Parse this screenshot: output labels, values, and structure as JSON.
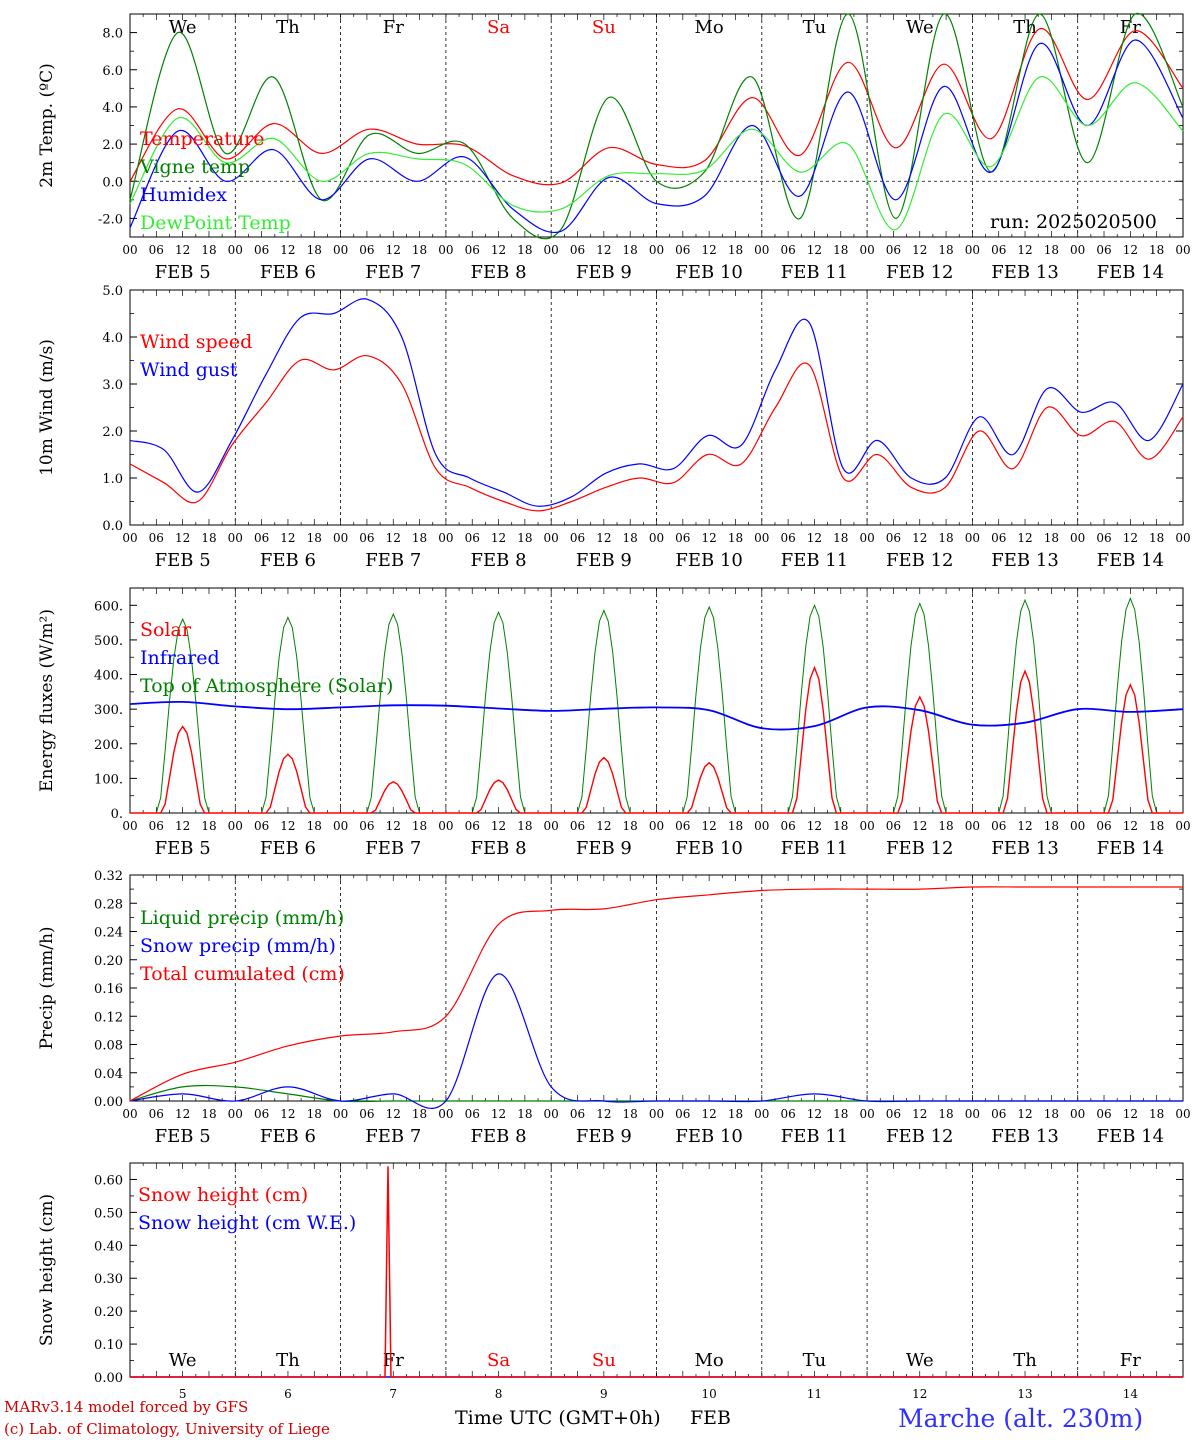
{
  "days_short": [
    "We",
    "Th",
    "Fr",
    "Sa",
    "Su",
    "Mo",
    "Tu",
    "We",
    "Th",
    "Fr"
  ],
  "weekend_color": "#ff0000",
  "weekday_color": "#000000",
  "date_labels": [
    "FEB  5",
    "FEB  6",
    "FEB  7",
    "FEB  8",
    "FEB  9",
    "FEB 10",
    "FEB 11",
    "FEB 12",
    "FEB 13",
    "FEB 14"
  ],
  "hour_labels": [
    "00",
    "06",
    "12",
    "18"
  ],
  "final_hour_label": "00",
  "run_label": "run: 2025020500",
  "footer": {
    "model": "MARv3.14 model forced by GFS",
    "copyright": "(c) Lab. of Climatology, University of Liege",
    "x_axis": "Time UTC (GMT+0h)",
    "month": "FEB",
    "station": "Marche (alt. 230m)",
    "bottom_day_numbers": [
      "5",
      "6",
      "7",
      "8",
      "9",
      "10",
      "11",
      "12",
      "13",
      "14"
    ]
  },
  "chart_data": [
    {
      "id": "temp",
      "type": "line",
      "ylabel": "2m Temp. (ºC)",
      "ylim": [
        -3.0,
        9.0
      ],
      "yticks": [
        "-2.0",
        "0.0",
        "2.0",
        "4.0",
        "6.0",
        "8.0"
      ],
      "x_unit": "hours since 2025-02-05 00 UTC",
      "step_hours": 12,
      "zero_line": true,
      "series": [
        {
          "name": "Temperature",
          "color": "#ff0000",
          "values": [
            0.0,
            3.9,
            1.2,
            3.1,
            1.5,
            2.8,
            2.0,
            1.9,
            0.3,
            -0.1,
            1.8,
            0.9,
            1.1,
            4.5,
            1.4,
            6.4,
            1.8,
            6.3,
            2.3,
            8.2,
            4.4,
            8.1,
            5.0
          ]
        },
        {
          "name": "Vigne temp",
          "color": "#008000",
          "values": [
            -1.0,
            8.0,
            1.5,
            5.6,
            -1.0,
            2.5,
            1.5,
            2.0,
            -2.0,
            -2.6,
            4.5,
            0.0,
            0.5,
            5.6,
            -2.0,
            11.0,
            -2.0,
            9.0,
            0.5,
            10.0,
            1.0,
            9.5,
            4.0
          ]
        },
        {
          "name": "Humidex",
          "color": "#0000ff",
          "values": [
            -2.5,
            2.7,
            0.0,
            1.7,
            -1.0,
            1.2,
            0.0,
            1.3,
            -1.5,
            -2.7,
            0.2,
            -1.2,
            -0.8,
            3.0,
            -0.8,
            4.8,
            -1.0,
            5.1,
            0.5,
            7.4,
            3.0,
            7.6,
            3.4
          ]
        },
        {
          "name": "DewPoint Temp",
          "color": "#33ee33",
          "values": [
            -1.2,
            3.4,
            1.0,
            2.3,
            0.0,
            1.5,
            1.2,
            0.9,
            -1.3,
            -1.5,
            0.3,
            0.4,
            0.6,
            2.8,
            0.5,
            2.0,
            -2.6,
            3.6,
            0.8,
            5.6,
            3.0,
            5.3,
            2.7
          ]
        }
      ]
    },
    {
      "id": "wind",
      "type": "line",
      "ylabel": "10m Wind (m/s)",
      "ylim": [
        0.0,
        5.0
      ],
      "yticks": [
        "0.0",
        "1.0",
        "2.0",
        "3.0",
        "4.0",
        "5.0"
      ],
      "x_unit": "hours since 2025-02-05 00 UTC",
      "step_hours": 12,
      "series": [
        {
          "name": "Wind speed",
          "color": "#ff0000",
          "values": [
            1.3,
            0.9,
            0.5,
            1.7,
            2.6,
            3.5,
            3.3,
            3.6,
            3.0,
            1.2,
            0.8,
            0.5,
            0.3,
            0.5,
            0.8,
            1.0,
            0.9,
            1.5,
            1.3,
            2.5,
            3.4,
            1.0,
            1.5,
            0.8,
            0.8,
            2.0,
            1.2,
            2.5,
            1.9,
            2.2,
            1.4,
            2.3
          ]
        },
        {
          "name": "Wind gust",
          "color": "#0000ff",
          "values": [
            1.8,
            1.6,
            0.7,
            1.8,
            3.2,
            4.4,
            4.5,
            4.8,
            4.0,
            1.5,
            1.0,
            0.7,
            0.4,
            0.6,
            1.1,
            1.3,
            1.2,
            1.9,
            1.7,
            3.3,
            4.3,
            1.2,
            1.8,
            1.0,
            1.0,
            2.3,
            1.5,
            2.9,
            2.4,
            2.6,
            1.8,
            3.0
          ]
        }
      ],
      "step_hours_fine": 7.5
    },
    {
      "id": "energy",
      "type": "line",
      "ylabel": "Energy fluxes (W/m²)",
      "ylim": [
        0,
        650
      ],
      "yticks": [
        "0.",
        "100.",
        "200.",
        "300.",
        "400.",
        "500.",
        "600."
      ],
      "x_unit": "day index 0-9 (FEB 5 to FEB 14)",
      "series": [
        {
          "name": "Solar",
          "color": "#ff0000",
          "daily_peaks": [
            250,
            170,
            90,
            95,
            160,
            145,
            420,
            335,
            410,
            370
          ]
        },
        {
          "name": "Infrared",
          "color": "#0000ff",
          "daily_level": [
            315,
            308,
            305,
            310,
            295,
            305,
            245,
            305,
            255,
            300
          ]
        },
        {
          "name": "Top of Atmosphere (Solar)",
          "color": "#008000",
          "daily_peaks": [
            560,
            565,
            575,
            580,
            585,
            595,
            600,
            605,
            615,
            620
          ]
        }
      ]
    },
    {
      "id": "precip",
      "type": "line",
      "ylabel": "Precip (mm/h)",
      "ylim": [
        0.0,
        0.32
      ],
      "yticks": [
        "0.00",
        "0.04",
        "0.08",
        "0.12",
        "0.16",
        "0.20",
        "0.24",
        "0.28",
        "0.32"
      ],
      "x_unit": "hours since 2025-02-05 00 UTC",
      "step_hours": 12,
      "series": [
        {
          "name": "Liquid precip (mm/h)",
          "color": "#008000",
          "values": [
            0.0,
            0.02,
            0.02,
            0.01,
            0.0,
            0.0,
            0.0,
            0.0,
            0.0,
            0.0,
            0.0,
            0.0,
            0.0,
            0.0,
            0.0,
            0.0,
            0.0,
            0.0,
            0.0,
            0.0,
            0.0
          ]
        },
        {
          "name": "Snow precip (mm/h)",
          "color": "#0000ff",
          "values": [
            0.0,
            0.01,
            0.0,
            0.02,
            0.0,
            0.01,
            0.0,
            0.18,
            0.02,
            0.0,
            0.0,
            0.0,
            0.0,
            0.01,
            0.0,
            0.0,
            0.0,
            0.0,
            0.0,
            0.0,
            0.0
          ]
        },
        {
          "name": "Total cumulated (cm)",
          "color": "#ff0000",
          "values": [
            0.0,
            0.038,
            0.055,
            0.078,
            0.092,
            0.098,
            0.12,
            0.25,
            0.27,
            0.272,
            0.285,
            0.292,
            0.298,
            0.3,
            0.3,
            0.3,
            0.303,
            0.303,
            0.303,
            0.303,
            0.303
          ]
        }
      ]
    },
    {
      "id": "snow",
      "type": "line",
      "ylabel": "Snow height (cm)",
      "ylim": [
        0.0,
        0.65
      ],
      "yticks": [
        "0.00",
        "0.10",
        "0.20",
        "0.30",
        "0.40",
        "0.50",
        "0.60"
      ],
      "x_unit": "day index 0-9 (FEB 5 to FEB 14)",
      "series": [
        {
          "name": "Snow height (cm)",
          "color": "#ff0000",
          "spike_day": 2.0,
          "spike_value": 0.64
        },
        {
          "name": "Snow height (cm W.E.)",
          "color": "#0000ff",
          "spike_day": 2.0,
          "spike_value": 0.0
        }
      ]
    }
  ]
}
